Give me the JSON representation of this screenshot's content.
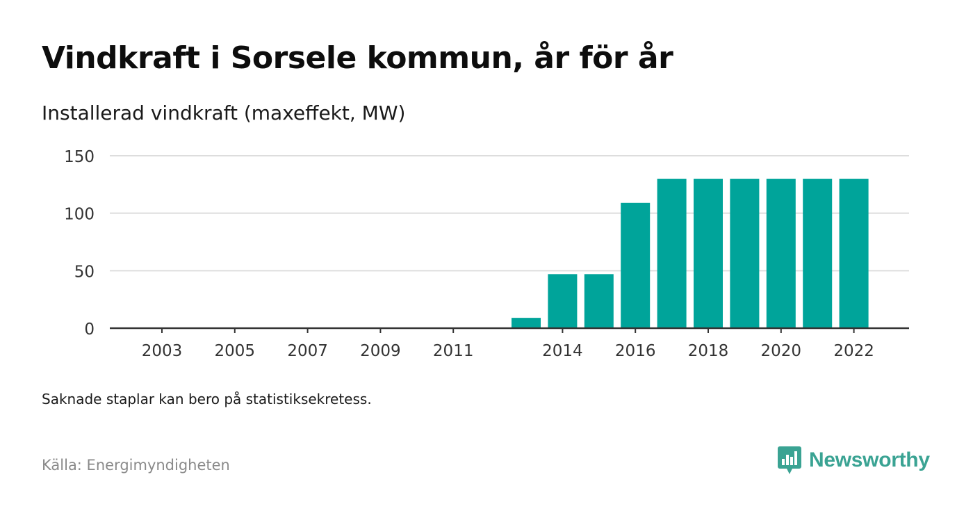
{
  "title": "Vindkraft i Sorsele kommun, år för år",
  "subtitle": "Installerad vindkraft (maxeffekt, MW)",
  "note": "Saknade staplar kan bero på statistiksekretess.",
  "source": "Källa: Energimyndigheten",
  "brand": {
    "name": "Newsworthy",
    "logo_icon": "bar-chart-speech-bubble-icon",
    "color": "#3aa393"
  },
  "chart_data": {
    "type": "bar",
    "title": "Vindkraft i Sorsele kommun, år för år",
    "ylabel": "",
    "xlabel": "",
    "categories": [
      "2003",
      "2004",
      "2005",
      "2006",
      "2007",
      "2008",
      "2009",
      "2010",
      "2011",
      "2012",
      "2013",
      "2014",
      "2015",
      "2016",
      "2017",
      "2018",
      "2019",
      "2020",
      "2021",
      "2022"
    ],
    "values": [
      0,
      0,
      0,
      0,
      0,
      0,
      0,
      0,
      0,
      0,
      9,
      47,
      47,
      109,
      130,
      130,
      130,
      130,
      130,
      130
    ],
    "x_tick_labels": [
      "2003",
      "2005",
      "2007",
      "2009",
      "2011",
      "2014",
      "2016",
      "2018",
      "2020",
      "2022"
    ],
    "y_ticks": [
      0,
      50,
      100,
      150
    ],
    "ylim": [
      0,
      150
    ],
    "grid": true,
    "bar_color": "#00a49a",
    "grid_color": "#dddddd",
    "axis_color": "#333333"
  }
}
